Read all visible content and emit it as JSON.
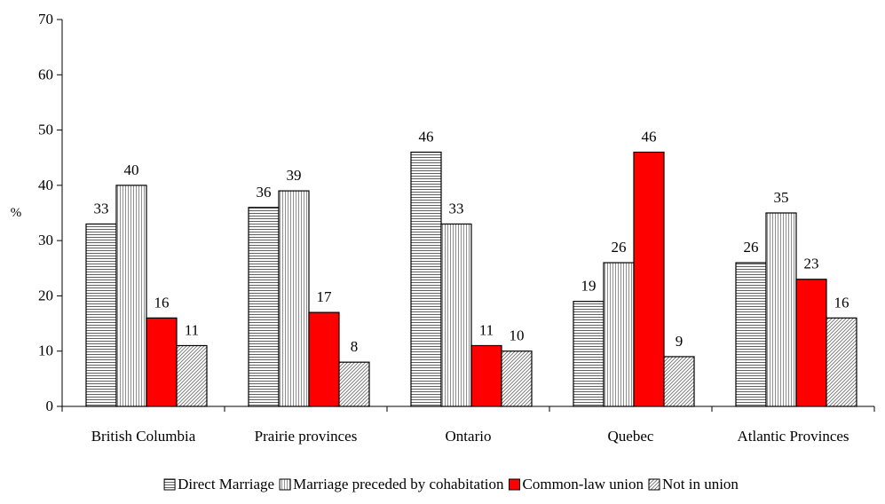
{
  "chart_data": {
    "type": "bar",
    "ylabel": "%",
    "ylim": [
      0,
      70
    ],
    "yticks": [
      0,
      10,
      20,
      30,
      40,
      50,
      60,
      70
    ],
    "categories": [
      "British Columbia",
      "Prairie provinces",
      "Ontario",
      "Quebec",
      "Atlantic Provinces"
    ],
    "series": [
      {
        "name": "Direct Marriage",
        "values": [
          33,
          36,
          46,
          19,
          26
        ],
        "pattern": "horizontal-lines",
        "color": "#ffffff"
      },
      {
        "name": "Marriage preceded by cohabitation",
        "values": [
          40,
          39,
          33,
          26,
          35
        ],
        "pattern": "vertical-lines",
        "color": "#ffffff"
      },
      {
        "name": "Common-law union",
        "values": [
          16,
          17,
          11,
          46,
          23
        ],
        "pattern": "solid",
        "color": "#ff0000"
      },
      {
        "name": "Not in union",
        "values": [
          11,
          8,
          10,
          9,
          16
        ],
        "pattern": "diagonal-lines",
        "color": "#ffffff"
      }
    ],
    "legend_position": "bottom",
    "grid": false,
    "data_labels": true
  }
}
